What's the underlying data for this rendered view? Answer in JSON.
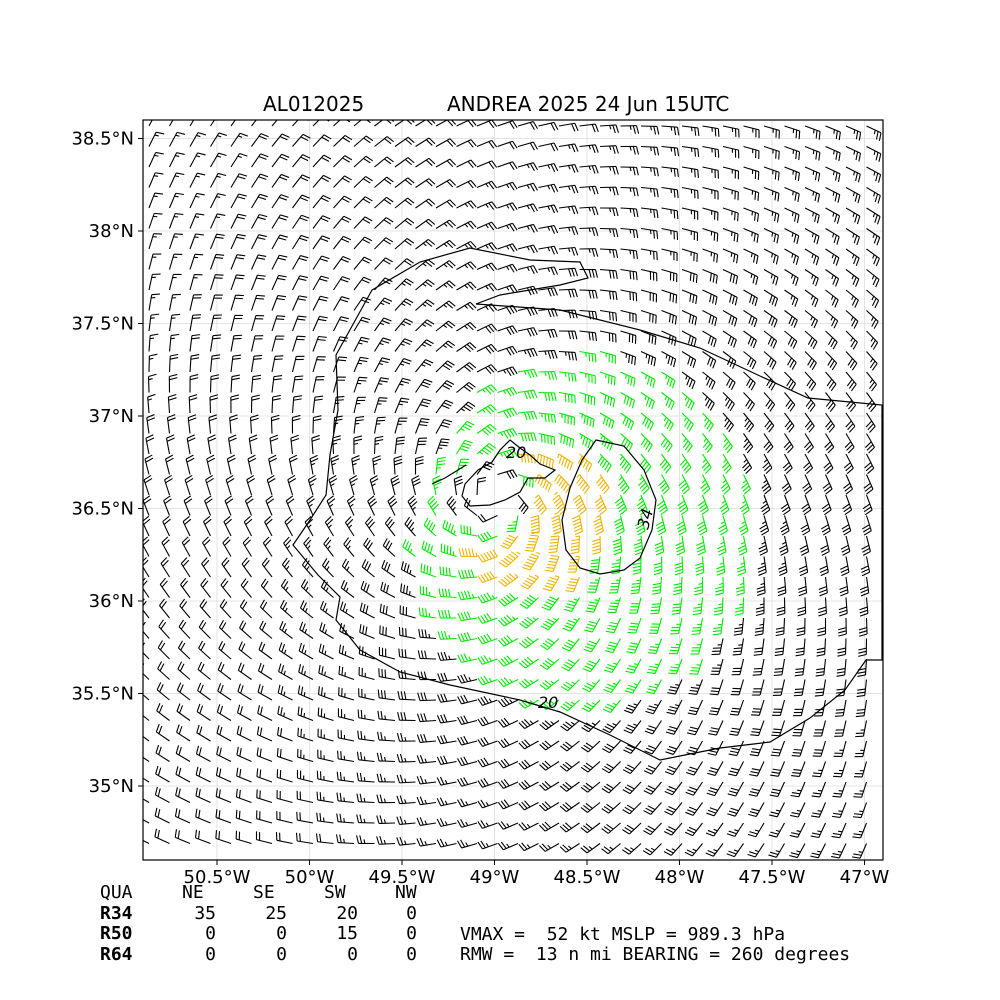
{
  "title": {
    "storm_id": "AL012025",
    "description": "ANDREA 2025 24 Jun 15UTC"
  },
  "chart_data": {
    "type": "wind_barb_map",
    "xlim": [
      -50.9,
      -46.9
    ],
    "ylim": [
      34.6,
      38.6
    ],
    "x_ticks": [
      {
        "value": -50.5,
        "label": "50.5°W"
      },
      {
        "value": -50.0,
        "label": "50°W"
      },
      {
        "value": -49.5,
        "label": "49.5°W"
      },
      {
        "value": -49.0,
        "label": "49°W"
      },
      {
        "value": -48.5,
        "label": "48.5°W"
      },
      {
        "value": -48.0,
        "label": "48°W"
      },
      {
        "value": -47.5,
        "label": "47.5°W"
      },
      {
        "value": -47.0,
        "label": "47°W"
      }
    ],
    "y_ticks": [
      {
        "value": 38.5,
        "label": "38.5°N"
      },
      {
        "value": 38.0,
        "label": "38°N"
      },
      {
        "value": 37.5,
        "label": "37.5°N"
      },
      {
        "value": 37.0,
        "label": "37°N"
      },
      {
        "value": 36.5,
        "label": "36.5°N"
      },
      {
        "value": 36.0,
        "label": "36°N"
      },
      {
        "value": 35.5,
        "label": "35.5°N"
      },
      {
        "value": 35.0,
        "label": "35°N"
      }
    ],
    "grid": true,
    "center": {
      "lon": -48.99,
      "lat": 36.53
    },
    "wind_colors": {
      "below_34": "#000000",
      "34_to_50": "#00ee00",
      "50_to_64": "#f0b400"
    },
    "contours": [
      {
        "level": 20,
        "label": "20"
      },
      {
        "level": 34,
        "label": "34"
      }
    ]
  },
  "table": {
    "header": [
      "QUA",
      "NE",
      "SE",
      "SW",
      "NW"
    ],
    "rows": [
      {
        "label": "R34",
        "values": [
          "35",
          "25",
          "20",
          "0"
        ]
      },
      {
        "label": "R50",
        "values": [
          "0",
          "0",
          "15",
          "0"
        ]
      },
      {
        "label": "R64",
        "values": [
          "0",
          "0",
          "0",
          "0"
        ]
      }
    ]
  },
  "info": {
    "line1": "VMAX =  52 kt MSLP = 989.3 hPa",
    "line2": "RMW =  13 n mi BEARING = 260 degrees"
  }
}
